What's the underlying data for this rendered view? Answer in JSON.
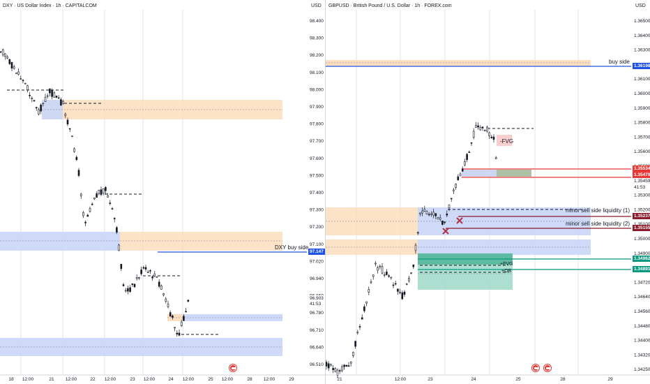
{
  "left": {
    "title": "DXY · US Dollar Index · 1h · CAPITALCOM",
    "currency": "USD",
    "y_ticks": [
      "98.400",
      "98.300",
      "98.200",
      "98.100",
      "98.000",
      "97.900",
      "97.800",
      "97.700",
      "97.600",
      "97.500",
      "97.400",
      "97.300",
      "97.200",
      "97.100",
      "97.020",
      "96.940",
      "96.860",
      "96.780",
      "96.710",
      "96.640",
      "96.510"
    ],
    "x_ticks": [
      "18",
      "12:00",
      "21",
      "12:00",
      "22",
      "12:00",
      "23",
      "12:00",
      "24",
      "12:00",
      "25",
      "12:00",
      "28",
      "12:00",
      "29"
    ],
    "annotation_buy_side": "DXY buy side",
    "badge_buy_side": "97.147",
    "current_price": "96.903",
    "countdown": "41:53",
    "colors": {
      "blue_line": "#1e53e5",
      "zone_orange": "#fbd7b0",
      "zone_blue": "#c9d6f7",
      "dash": "#131722"
    }
  },
  "right": {
    "title": "GBPUSD · British Pound / U.S. Dollar · 1h · FOREX.com",
    "currency": "USD",
    "y_ticks": [
      "1.36500",
      "1.36400",
      "1.36300",
      "1.36198",
      "1.36100",
      "1.36000",
      "1.35900",
      "1.35800",
      "1.35700",
      "1.35600",
      "1.35500",
      "1.35400",
      "1.35300",
      "1.35200",
      "1.35100",
      "1.35000",
      "1.34900",
      "1.34800",
      "1.34720",
      "1.34640",
      "1.34560",
      "1.34480",
      "1.34400",
      "1.34320",
      "1.34250"
    ],
    "x_ticks": [
      "21",
      "12:00",
      "23",
      "24",
      "25",
      "28",
      "29"
    ],
    "annotations": {
      "buy_side": "buy side",
      "fvg_minus": "-FVG",
      "minor_ssl_1": "minor sell side liquidity (1)",
      "minor_ssl_2": "minor sell side liquidity (2)",
      "fvg_plus": "+FVG",
      "ob_plus": "+OB"
    },
    "badges": {
      "buy_side": "1.36198",
      "red_top": "1.35534",
      "red_bottom": "1.35479",
      "current": "1.35459",
      "countdown": "41:53",
      "ssl1": "1.35237",
      "ssl2": "1.35155",
      "green_top": "1.34962",
      "green_bottom": "1.34891"
    },
    "colors": {
      "blue_line": "#1e53e5",
      "red_line": "#e53935",
      "dark_red": "#8b1a2b",
      "green_line": "#089981",
      "zone_orange": "#fbd7b0",
      "zone_blue": "#c9d6f7",
      "zone_green": "#9fd9c9",
      "zone_red": "#f8c9c9"
    }
  },
  "icons": [
    "economic-events-flag-icon"
  ]
}
